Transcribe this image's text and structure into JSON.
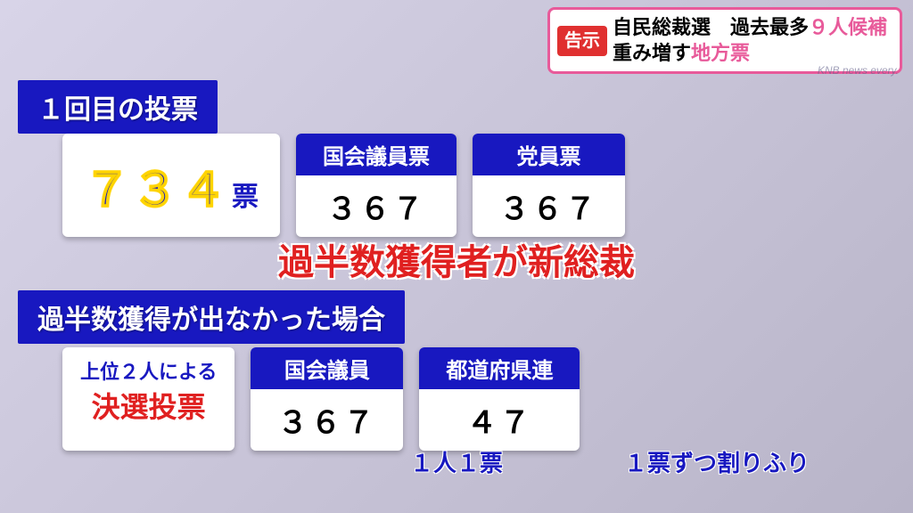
{
  "banner": {
    "badge": "告示",
    "line1_a": "自民総裁選　過去最多",
    "line1_b": "９人候補",
    "line2_a": "重み増す",
    "line2_b": "地方票"
  },
  "watermark": "KNB news every.",
  "section1": {
    "label": "１回目の投票",
    "total_num": "７３４",
    "total_unit": "票",
    "box1": {
      "header": "国会議員票",
      "value": "３６７"
    },
    "box2": {
      "header": "党員票",
      "value": "３６７"
    },
    "result": "過半数獲得者が新総裁"
  },
  "section2": {
    "label": "過半数獲得が出なかった場合",
    "runoff_line1": "上位２人による",
    "runoff_line2": "決選投票",
    "box1": {
      "header": "国会議員",
      "value": "３６７"
    },
    "box2": {
      "header": "都道府県連",
      "value": "４７"
    },
    "note1": "１人１票",
    "note2": "１票ずつ割りふり"
  }
}
